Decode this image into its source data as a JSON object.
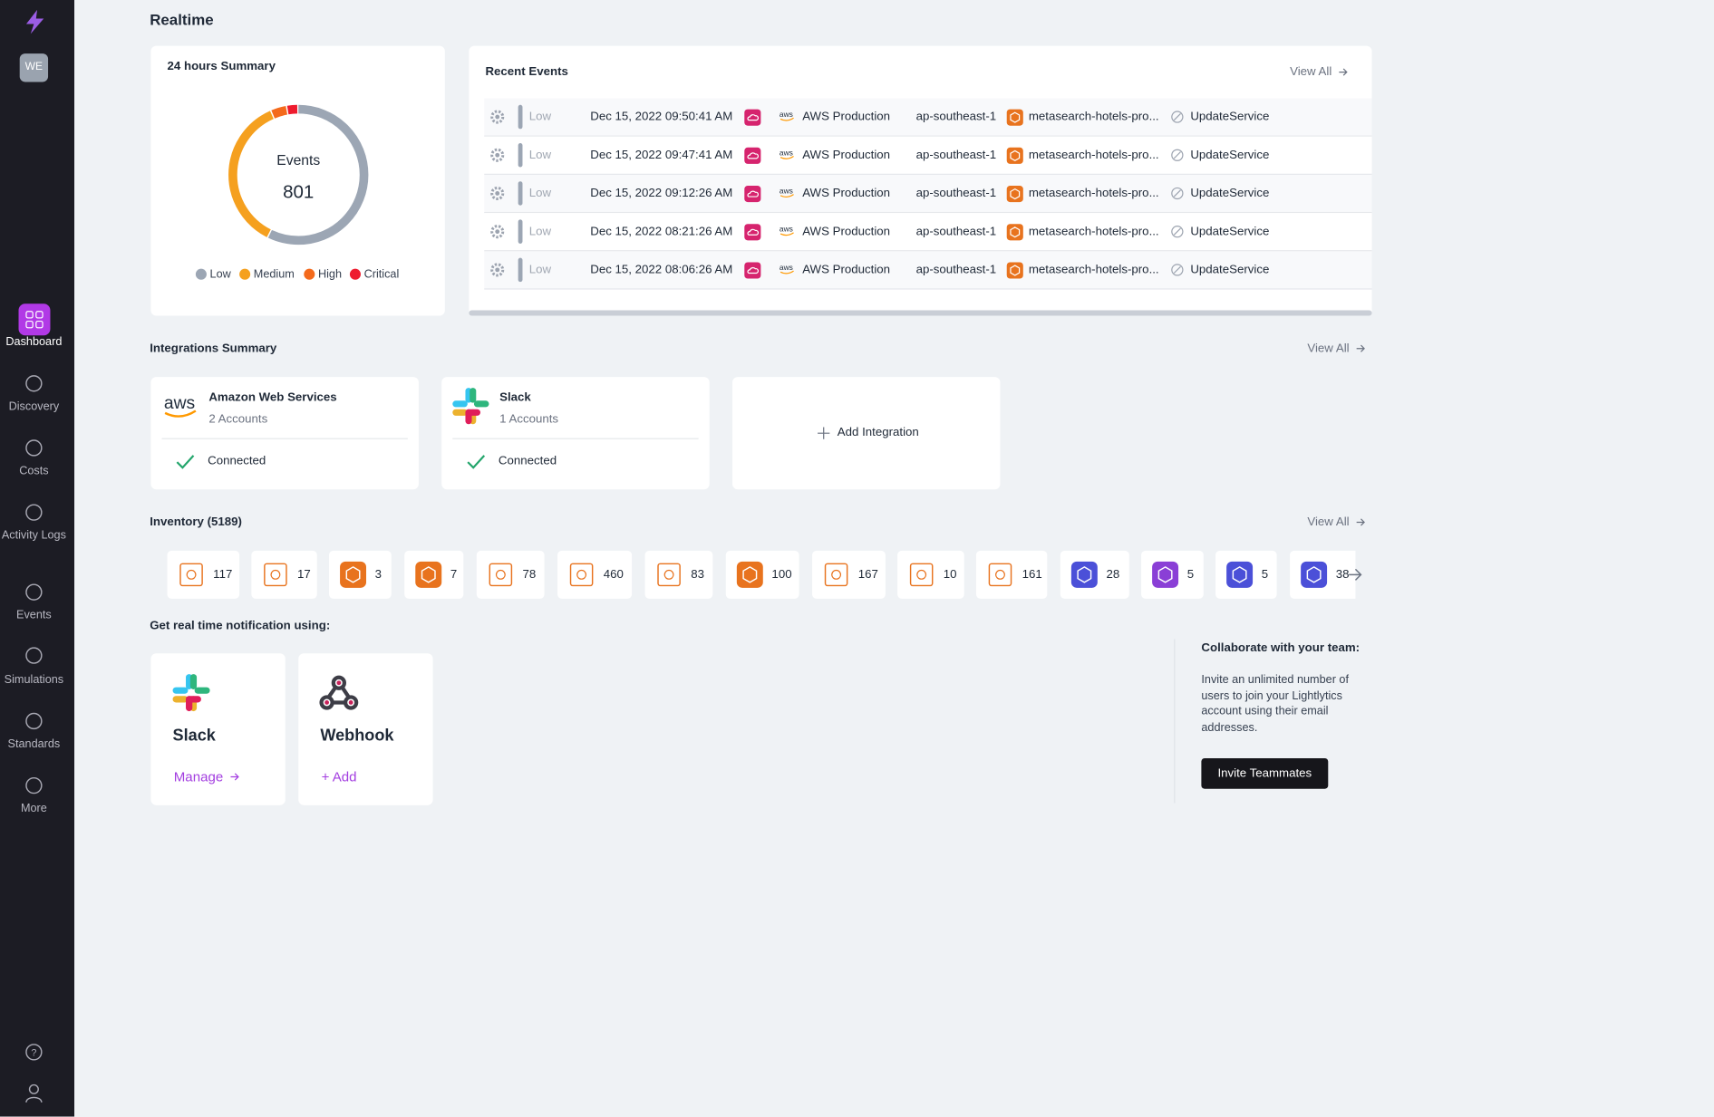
{
  "sidebar": {
    "avatar": "WE",
    "nav": [
      "Dashboard",
      "Discovery",
      "Costs",
      "Activity Logs",
      "Events",
      "Simulations",
      "Standards",
      "More"
    ]
  },
  "page_title": "Realtime",
  "summary": {
    "title": "24 hours Summary",
    "center_label": "Events",
    "total": 801,
    "segments": [
      {
        "name": "Low",
        "color": "#9ca6b4",
        "value": 460
      },
      {
        "name": "Medium",
        "color": "#f5a01f",
        "value": 290
      },
      {
        "name": "High",
        "color": "#f46a1c",
        "value": 30
      },
      {
        "name": "Critical",
        "color": "#ee1b2e",
        "value": 21
      }
    ]
  },
  "recent_events": {
    "title": "Recent Events",
    "view_all": "View All",
    "rows": [
      {
        "severity": "Low",
        "time": "Dec 15, 2022 09:50:41 AM",
        "account": "AWS Production",
        "region": "ap-southeast-1",
        "resource": "metasearch-hotels-pro...",
        "action": "UpdateService"
      },
      {
        "severity": "Low",
        "time": "Dec 15, 2022 09:47:41 AM",
        "account": "AWS Production",
        "region": "ap-southeast-1",
        "resource": "metasearch-hotels-pro...",
        "action": "UpdateService"
      },
      {
        "severity": "Low",
        "time": "Dec 15, 2022 09:12:26 AM",
        "account": "AWS Production",
        "region": "ap-southeast-1",
        "resource": "metasearch-hotels-pro...",
        "action": "UpdateService"
      },
      {
        "severity": "Low",
        "time": "Dec 15, 2022 08:21:26 AM",
        "account": "AWS Production",
        "region": "ap-southeast-1",
        "resource": "metasearch-hotels-pro...",
        "action": "UpdateService"
      },
      {
        "severity": "Low",
        "time": "Dec 15, 2022 08:06:26 AM",
        "account": "AWS Production",
        "region": "ap-southeast-1",
        "resource": "metasearch-hotels-pro...",
        "action": "UpdateService"
      }
    ]
  },
  "integrations": {
    "title": "Integrations Summary",
    "view_all": "View All",
    "cards": [
      {
        "name": "Amazon Web Services",
        "accounts": "2 Accounts",
        "status": "Connected"
      },
      {
        "name": "Slack",
        "accounts": "1 Accounts",
        "status": "Connected"
      }
    ],
    "add": "Add Integration"
  },
  "inventory": {
    "title": "Inventory (5189)",
    "view_all": "View All",
    "counts": [
      117,
      17,
      3,
      7,
      78,
      460,
      83,
      100,
      167,
      10,
      161,
      28,
      5,
      5,
      38
    ]
  },
  "notifications": {
    "title": "Get real time notification using:",
    "channels": [
      {
        "name": "Slack",
        "action": "Manage"
      },
      {
        "name": "Webhook",
        "action": "+ Add"
      }
    ]
  },
  "collaborate": {
    "title": "Collaborate with your team:",
    "text": "Invite an unlimited number of users to join your Lightlytics account using their email addresses.",
    "button": "Invite Teammates"
  }
}
